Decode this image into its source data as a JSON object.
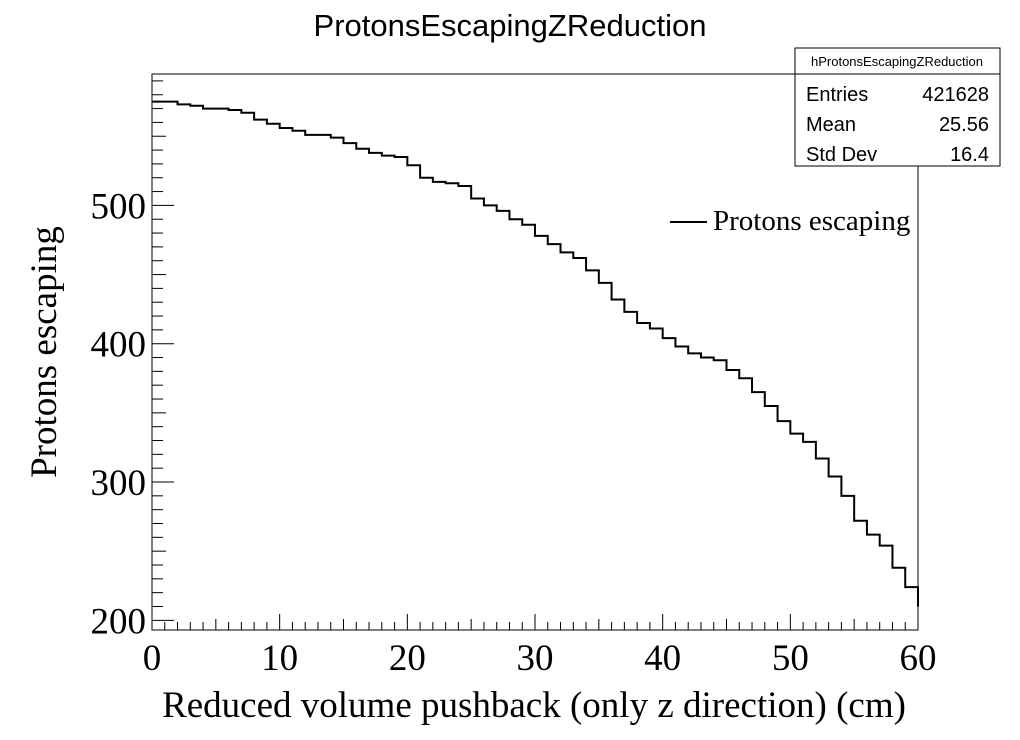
{
  "chart_data": {
    "type": "histogram",
    "title": "ProtonsEscapingZReduction",
    "xlabel": "Reduced volume pushback (only z direction) (cm)",
    "ylabel": "Protons escaping",
    "xlim": [
      0,
      60
    ],
    "ylim": [
      193,
      595
    ],
    "xticks": [
      0,
      10,
      20,
      30,
      40,
      50,
      60
    ],
    "yticks": [
      200,
      300,
      400,
      500
    ],
    "bin_width": 1,
    "bin_edges_start": 0,
    "values": [
      575,
      575,
      573,
      572,
      570,
      570,
      569,
      567,
      562,
      559,
      556,
      554,
      551,
      551,
      549,
      545,
      541,
      538,
      536,
      535,
      529,
      520,
      517,
      516,
      514,
      505,
      500,
      496,
      490,
      486,
      478,
      472,
      466,
      462,
      453,
      444,
      432,
      423,
      415,
      411,
      404,
      398,
      393,
      390,
      388,
      381,
      375,
      365,
      355,
      344,
      335,
      329,
      317,
      304,
      290,
      272,
      262,
      254,
      238,
      224,
      210
    ],
    "legend": {
      "entries": [
        {
          "label": "Protons escaping"
        }
      ],
      "position": "upper-right"
    },
    "stats_box": {
      "name": "hProtonsEscapingZReduction",
      "rows": [
        {
          "label": "Entries",
          "value": "421628"
        },
        {
          "label": "Mean",
          "value": "25.56"
        },
        {
          "label": "Std Dev",
          "value": "16.4"
        }
      ]
    },
    "line_color": "#000000",
    "grid": false
  }
}
